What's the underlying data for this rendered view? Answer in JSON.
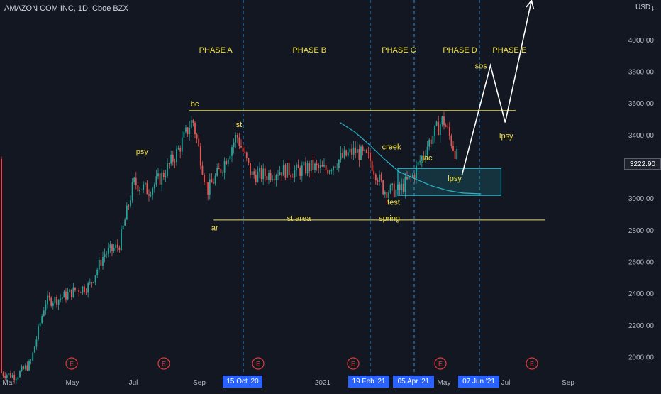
{
  "title": "AMAZON COM INC, 1D, Cboe BZX",
  "currency": "USD",
  "current_price": "3222.90",
  "colors": {
    "background": "#131722",
    "up": "#26a69a",
    "down": "#ef5350",
    "annotation": "#f0e040",
    "box": "#26c6da",
    "ma": "#2bb1c4",
    "drawing": "#ffffff",
    "date_highlight": "#2962ff",
    "earnings": "#e53935"
  },
  "date_tags": [
    "15 Oct '20",
    "19 Feb '21",
    "05 Apr '21",
    "07 Jun '21"
  ],
  "earnings_marker": "E",
  "chart_data": {
    "type": "candlestick",
    "title": "AMAZON COM INC, 1D, Cboe BZX",
    "y_ticks": [
      "2000.00",
      "2200.00",
      "2400.00",
      "2600.00",
      "2800.00",
      "3000.00",
      "3200.00",
      "3400.00",
      "3600.00",
      "3800.00",
      "4000.00"
    ],
    "ylim": [
      1920,
      4200
    ],
    "x_ticks": [
      "Mar",
      "May",
      "Jul",
      "Sep",
      "2021",
      "May",
      "Jul",
      "Sep"
    ],
    "grid": false,
    "series": [
      {
        "x": [
          "2020-03-02",
          "2020-03-16",
          "2020-03-30",
          "2020-04-13",
          "2020-04-27",
          "2020-05-11",
          "2020-05-25",
          "2020-06-08",
          "2020-06-22",
          "2020-07-06",
          "2020-07-20",
          "2020-08-03",
          "2020-08-17",
          "2020-08-31",
          "2020-09-14",
          "2020-09-28",
          "2020-10-12",
          "2020-10-26",
          "2020-11-09",
          "2020-11-23",
          "2020-12-07",
          "2020-12-21",
          "2021-01-04",
          "2021-01-18",
          "2021-02-01",
          "2021-02-15",
          "2021-03-01",
          "2021-03-15",
          "2021-03-29",
          "2021-04-12",
          "2021-04-26",
          "2021-05-10"
        ],
        "values": [
          1900,
          1880,
          1960,
          2350,
          2370,
          2420,
          2450,
          2650,
          2700,
          3100,
          3050,
          3150,
          3300,
          3500,
          3050,
          3200,
          3400,
          3150,
          3150,
          3180,
          3170,
          3200,
          3180,
          3250,
          3300,
          3250,
          3050,
          3050,
          3150,
          3350,
          3500,
          3250
        ]
      },
      {
        "name": "moving average",
        "x": [
          "2021-01-18",
          "2021-02-01",
          "2021-02-15",
          "2021-03-01",
          "2021-03-15",
          "2021-04-01",
          "2021-04-15",
          "2021-05-01",
          "2021-05-15",
          "2021-06-01"
        ],
        "values": [
          3480,
          3420,
          3340,
          3250,
          3170,
          3120,
          3080,
          3050,
          3035,
          3030
        ]
      }
    ],
    "annotations": {
      "phases": [
        "PHASE A",
        "PHASE B",
        "PHASE C",
        "PHASE D",
        "PHASE E"
      ],
      "labels": [
        {
          "text": "bc",
          "x": "2020-09-02",
          "y": 3580
        },
        {
          "text": "st",
          "x": "2020-10-14",
          "y": 3450
        },
        {
          "text": "psy",
          "x": "2020-07-14",
          "y": 3280
        },
        {
          "text": "ar",
          "x": "2020-09-21",
          "y": 2800
        },
        {
          "text": "st area",
          "x": "2020-12-10",
          "y": 2860
        },
        {
          "text": "creek",
          "x": "2021-03-08",
          "y": 3310
        },
        {
          "text": "jac",
          "x": "2021-04-11",
          "y": 3240
        },
        {
          "text": "lpsy",
          "x": "2021-05-07",
          "y": 3110
        },
        {
          "text": "test",
          "x": "2021-03-10",
          "y": 2960
        },
        {
          "text": "spring",
          "x": "2021-03-06",
          "y": 2860
        },
        {
          "text": "sos",
          "x": "2021-06-01",
          "y": 3820
        },
        {
          "text": "lpsy",
          "x": "2021-06-25",
          "y": 3380
        }
      ],
      "resistance": 3555,
      "support": 2865,
      "projection": {
        "x": [
          "2021-05-14",
          "2021-06-10",
          "2021-06-24",
          "2021-07-19"
        ],
        "y": [
          3150,
          3840,
          3480,
          4250
        ]
      },
      "box_range": [
        3020,
        3190
      ]
    }
  }
}
